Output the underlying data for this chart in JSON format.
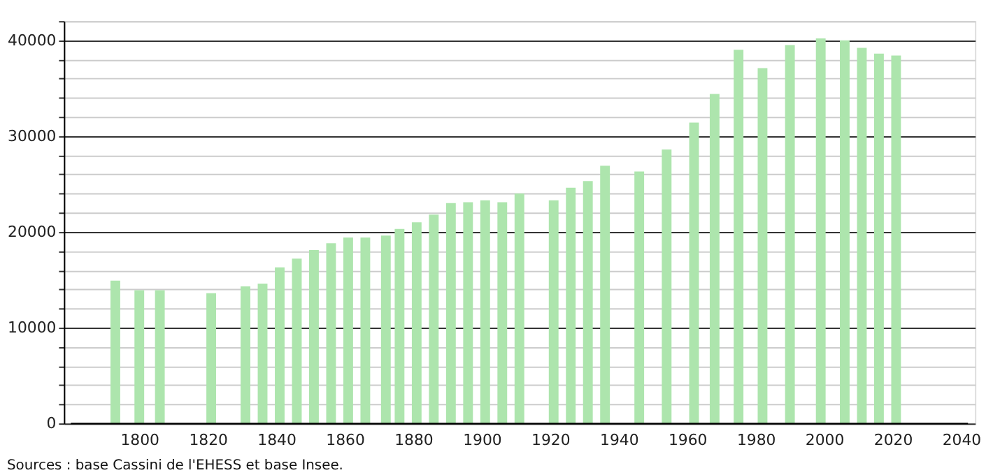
{
  "chart_data": {
    "type": "bar",
    "x": [
      1793,
      1800,
      1806,
      1821,
      1831,
      1836,
      1841,
      1846,
      1851,
      1856,
      1861,
      1866,
      1872,
      1876,
      1881,
      1886,
      1891,
      1896,
      1901,
      1906,
      1911,
      1921,
      1926,
      1931,
      1936,
      1946,
      1954,
      1962,
      1968,
      1975,
      1982,
      1990,
      1999,
      2006,
      2011,
      2016,
      2021
    ],
    "values": [
      14900,
      13900,
      13900,
      13600,
      14300,
      14600,
      16300,
      17200,
      18100,
      18800,
      19400,
      19400,
      19600,
      20300,
      21000,
      21800,
      23000,
      23100,
      23300,
      23100,
      24000,
      23300,
      24600,
      25300,
      26900,
      26300,
      28600,
      31400,
      34400,
      39000,
      37100,
      39500,
      40200,
      40000,
      39200,
      38600,
      38400
    ],
    "color": "#ade5ad",
    "xlim": [
      1780,
      2042
    ],
    "xticks": [
      1800,
      1820,
      1840,
      1860,
      1880,
      1900,
      1920,
      1940,
      1960,
      1980,
      2000,
      2020,
      2040
    ],
    "ylim": [
      0,
      42000
    ],
    "yticks": [
      0,
      {
        "value": 2000,
        "label": null
      },
      {
        "value": 4000,
        "label": null
      },
      {
        "value": 6000,
        "label": null
      },
      {
        "value": 8000,
        "label": null
      },
      10000,
      {
        "value": 12000,
        "label": null
      },
      {
        "value": 14000,
        "label": null
      },
      {
        "value": 16000,
        "label": null
      },
      {
        "value": 18000,
        "label": null
      },
      20000,
      {
        "value": 22000,
        "label": null
      },
      {
        "value": 24000,
        "label": null
      },
      {
        "value": 26000,
        "label": null
      },
      {
        "value": 28000,
        "label": null
      },
      30000,
      {
        "value": 32000,
        "label": null
      },
      {
        "value": 34000,
        "label": null
      },
      {
        "value": 36000,
        "label": null
      },
      {
        "value": 38000,
        "label": null
      },
      40000,
      {
        "value": 42000,
        "label": null
      }
    ],
    "grid": "y",
    "annotations": [
      "Sources : base Cassini de l'EHESS et base Insee."
    ]
  }
}
